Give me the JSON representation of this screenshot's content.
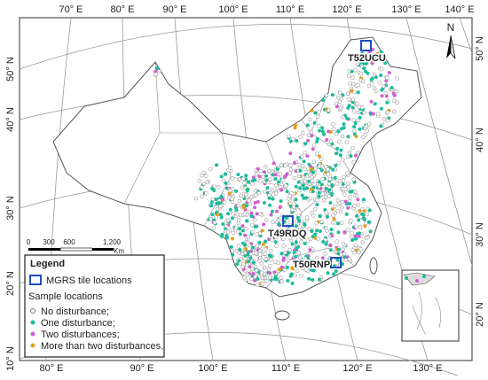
{
  "map": {
    "top_longitude_labels": [
      "70° E",
      "80° E",
      "90° E",
      "100° E",
      "110° E",
      "120° E",
      "130° E",
      "140° E"
    ],
    "bottom_longitude_labels": [
      "80° E",
      "90° E",
      "100° E",
      "110° E",
      "120° E",
      "130° E"
    ],
    "left_latitude_labels": [
      "50° N",
      "40° N",
      "30° N",
      "20° N",
      "10° N"
    ],
    "right_latitude_labels": [
      "50° N",
      "40° N",
      "30° N",
      "20° N"
    ],
    "tiles": [
      "T52UCU",
      "T49RDQ",
      "T50RNP"
    ],
    "north": "N",
    "scale_bar": {
      "labels": [
        "0",
        "300",
        "600",
        "1,200"
      ],
      "unit": "Km"
    }
  },
  "legend": {
    "title": "Legend",
    "tile_item": "MGRS tile locations",
    "samples_heading": "Sample locations",
    "items": [
      "No disturbance;",
      "One disturbance;",
      "Two disturbances;",
      "More than two disturbances."
    ]
  }
}
